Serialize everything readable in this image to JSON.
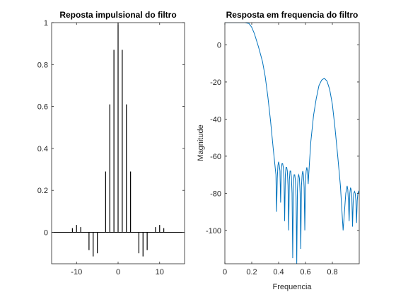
{
  "chart_data": [
    {
      "type": "stem",
      "title": "Reposta impulsional do filtro",
      "xlabel": "",
      "ylabel": "",
      "xlim": [
        -16,
        16
      ],
      "ylim": [
        -0.15,
        1
      ],
      "xticks": [
        -10,
        0,
        10
      ],
      "xtick_labels": [
        "-10",
        "0",
        "10"
      ],
      "yticks": [
        0,
        0.2,
        0.4,
        0.6,
        0.8,
        1
      ],
      "ytick_labels": [
        "0",
        "0.2",
        "0.4",
        "0.6",
        "0.8",
        "1"
      ],
      "color": "#000000",
      "x": [
        -15,
        -14,
        -13,
        -12,
        -11,
        -10,
        -9,
        -8,
        -7,
        -6,
        -5,
        -4,
        -3,
        -2,
        -1,
        0,
        1,
        2,
        3,
        4,
        5,
        6,
        7,
        8,
        9,
        10,
        11,
        12,
        13,
        14,
        15
      ],
      "values": [
        0,
        0,
        0,
        0,
        0.02,
        0.035,
        0.025,
        0,
        -0.085,
        -0.115,
        -0.1,
        0,
        0.29,
        0.61,
        0.87,
        1.0,
        0.87,
        0.61,
        0.29,
        0,
        -0.1,
        -0.115,
        -0.085,
        0,
        0.025,
        0.035,
        0.02,
        0,
        0,
        0,
        0
      ],
      "grid": false
    },
    {
      "type": "line",
      "title": "Resposta em frequencia do filtro",
      "xlabel": "Frequencia",
      "ylabel": "Magnitude",
      "xlim": [
        0,
        1
      ],
      "ylim": [
        -118,
        12
      ],
      "xticks": [
        0,
        0.2,
        0.4,
        0.6,
        0.8
      ],
      "xtick_labels": [
        "0",
        "0.2",
        "0.4",
        "0.6",
        "0.8"
      ],
      "yticks": [
        -100,
        -80,
        -60,
        -40,
        -20,
        0
      ],
      "ytick_labels": [
        "-100",
        "-80",
        "-60",
        "-40",
        "-20",
        "0"
      ],
      "color": "#0072BD",
      "grid": false,
      "series": [
        {
          "x": [
            0,
            0.05,
            0.1,
            0.15,
            0.18,
            0.2,
            0.22,
            0.25,
            0.28,
            0.3,
            0.32,
            0.34,
            0.36,
            0.37,
            0.38,
            0.385,
            0.39,
            0.395,
            0.4,
            0.405,
            0.41,
            0.415,
            0.42,
            0.425,
            0.43,
            0.435,
            0.44,
            0.445,
            0.45,
            0.455,
            0.46,
            0.465,
            0.47,
            0.475,
            0.48,
            0.485,
            0.49,
            0.495,
            0.5,
            0.505,
            0.51,
            0.515,
            0.52,
            0.525,
            0.53,
            0.535,
            0.54,
            0.545,
            0.55,
            0.555,
            0.56,
            0.565,
            0.57,
            0.575,
            0.58,
            0.585,
            0.59,
            0.595,
            0.6,
            0.605,
            0.61,
            0.615,
            0.62,
            0.63,
            0.64,
            0.66,
            0.68,
            0.7,
            0.72,
            0.74,
            0.76,
            0.78,
            0.8,
            0.82,
            0.84,
            0.86,
            0.88,
            0.9,
            0.905,
            0.91,
            0.915,
            0.92,
            0.925,
            0.93,
            0.935,
            0.94,
            0.945,
            0.95,
            0.955,
            0.96,
            0.965,
            0.97,
            0.975,
            0.98,
            0.985,
            0.99,
            0.995,
            1.0
          ],
          "y": [
            12,
            12,
            12,
            12,
            11.5,
            9.5,
            6,
            -1,
            -9,
            -17,
            -28,
            -41,
            -56,
            -63,
            -70,
            -90,
            -72,
            -65,
            -63,
            -65,
            -68,
            -85,
            -67,
            -64,
            -64,
            -66,
            -72,
            -95,
            -70,
            -66,
            -66,
            -68,
            -76,
            -100,
            -73,
            -68,
            -68,
            -71,
            -80,
            -115,
            -75,
            -70,
            -70,
            -73,
            -82,
            -118,
            -78,
            -71,
            -70,
            -72,
            -80,
            -110,
            -76,
            -70,
            -68,
            -70,
            -77,
            -100,
            -73,
            -68,
            -66,
            -68,
            -75,
            -63,
            -52,
            -38,
            -29,
            -22,
            -19,
            -18,
            -19.5,
            -24,
            -32,
            -45,
            -60,
            -76,
            -100,
            -80,
            -78,
            -76,
            -78,
            -85,
            -95,
            -80,
            -77,
            -78,
            -82,
            -98,
            -85,
            -80,
            -79,
            -80,
            -84,
            -96,
            -84,
            -80,
            -79,
            -80
          ]
        }
      ]
    }
  ]
}
